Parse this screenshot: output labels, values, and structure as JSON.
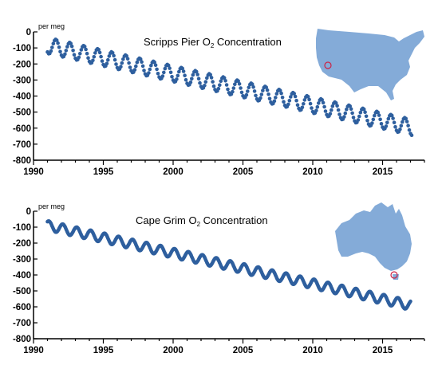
{
  "colors": {
    "points": "#2e5f9e",
    "map_fill": "#84abd8",
    "marker": "#cc2244",
    "axis": "#000000"
  },
  "chart_data": [
    {
      "type": "scatter",
      "title": "Scripps Pier O",
      "title_subscript": "2",
      "title_suffix": " Concentration",
      "ylabel": "per meg",
      "xlabel": "",
      "xlim": [
        1990,
        2018
      ],
      "ylim": [
        -800,
        0
      ],
      "xticks": [
        "1990",
        "1995",
        "2000",
        "2005",
        "2010",
        "2015"
      ],
      "yticks": [
        "0",
        "-100",
        "-200",
        "-300",
        "-400",
        "-500",
        "-600",
        "-700",
        "-800"
      ],
      "grid": false,
      "inset_map": "usa-map-icon",
      "series": [
        {
          "model": "linear trend with seasonal cycle",
          "start_year": 1991.0,
          "end_year": 2017.1,
          "start_value": -85,
          "end_value": -595,
          "seasonal_amplitude": 50,
          "peak_phase": 0.6,
          "points_per_year": 12,
          "first_point": [
            1991.0,
            -160
          ],
          "last_point": [
            2017.1,
            -670
          ]
        }
      ]
    },
    {
      "type": "scatter",
      "title": "Cape Grim O",
      "title_subscript": "2",
      "title_suffix": " Concentration",
      "ylabel": "per meg",
      "xlabel": "",
      "xlim": [
        1990,
        2018
      ],
      "ylim": [
        -800,
        0
      ],
      "xticks": [
        "1990",
        "1995",
        "2000",
        "2005",
        "2010",
        "2015"
      ],
      "yticks": [
        "0",
        "-100",
        "-200",
        "-300",
        "-400",
        "-500",
        "-600",
        "-700",
        "-800"
      ],
      "grid": false,
      "inset_map": "australia-map-icon",
      "series": [
        {
          "model": "linear trend with seasonal cycle",
          "start_year": 1991.0,
          "end_year": 2017.0,
          "start_value": -90,
          "end_value": -590,
          "seasonal_amplitude": 30,
          "peak_phase": 0.1,
          "points_per_year": 24,
          "first_point": [
            1991.0,
            -60
          ],
          "last_point": [
            2017.0,
            -610
          ]
        }
      ]
    }
  ]
}
